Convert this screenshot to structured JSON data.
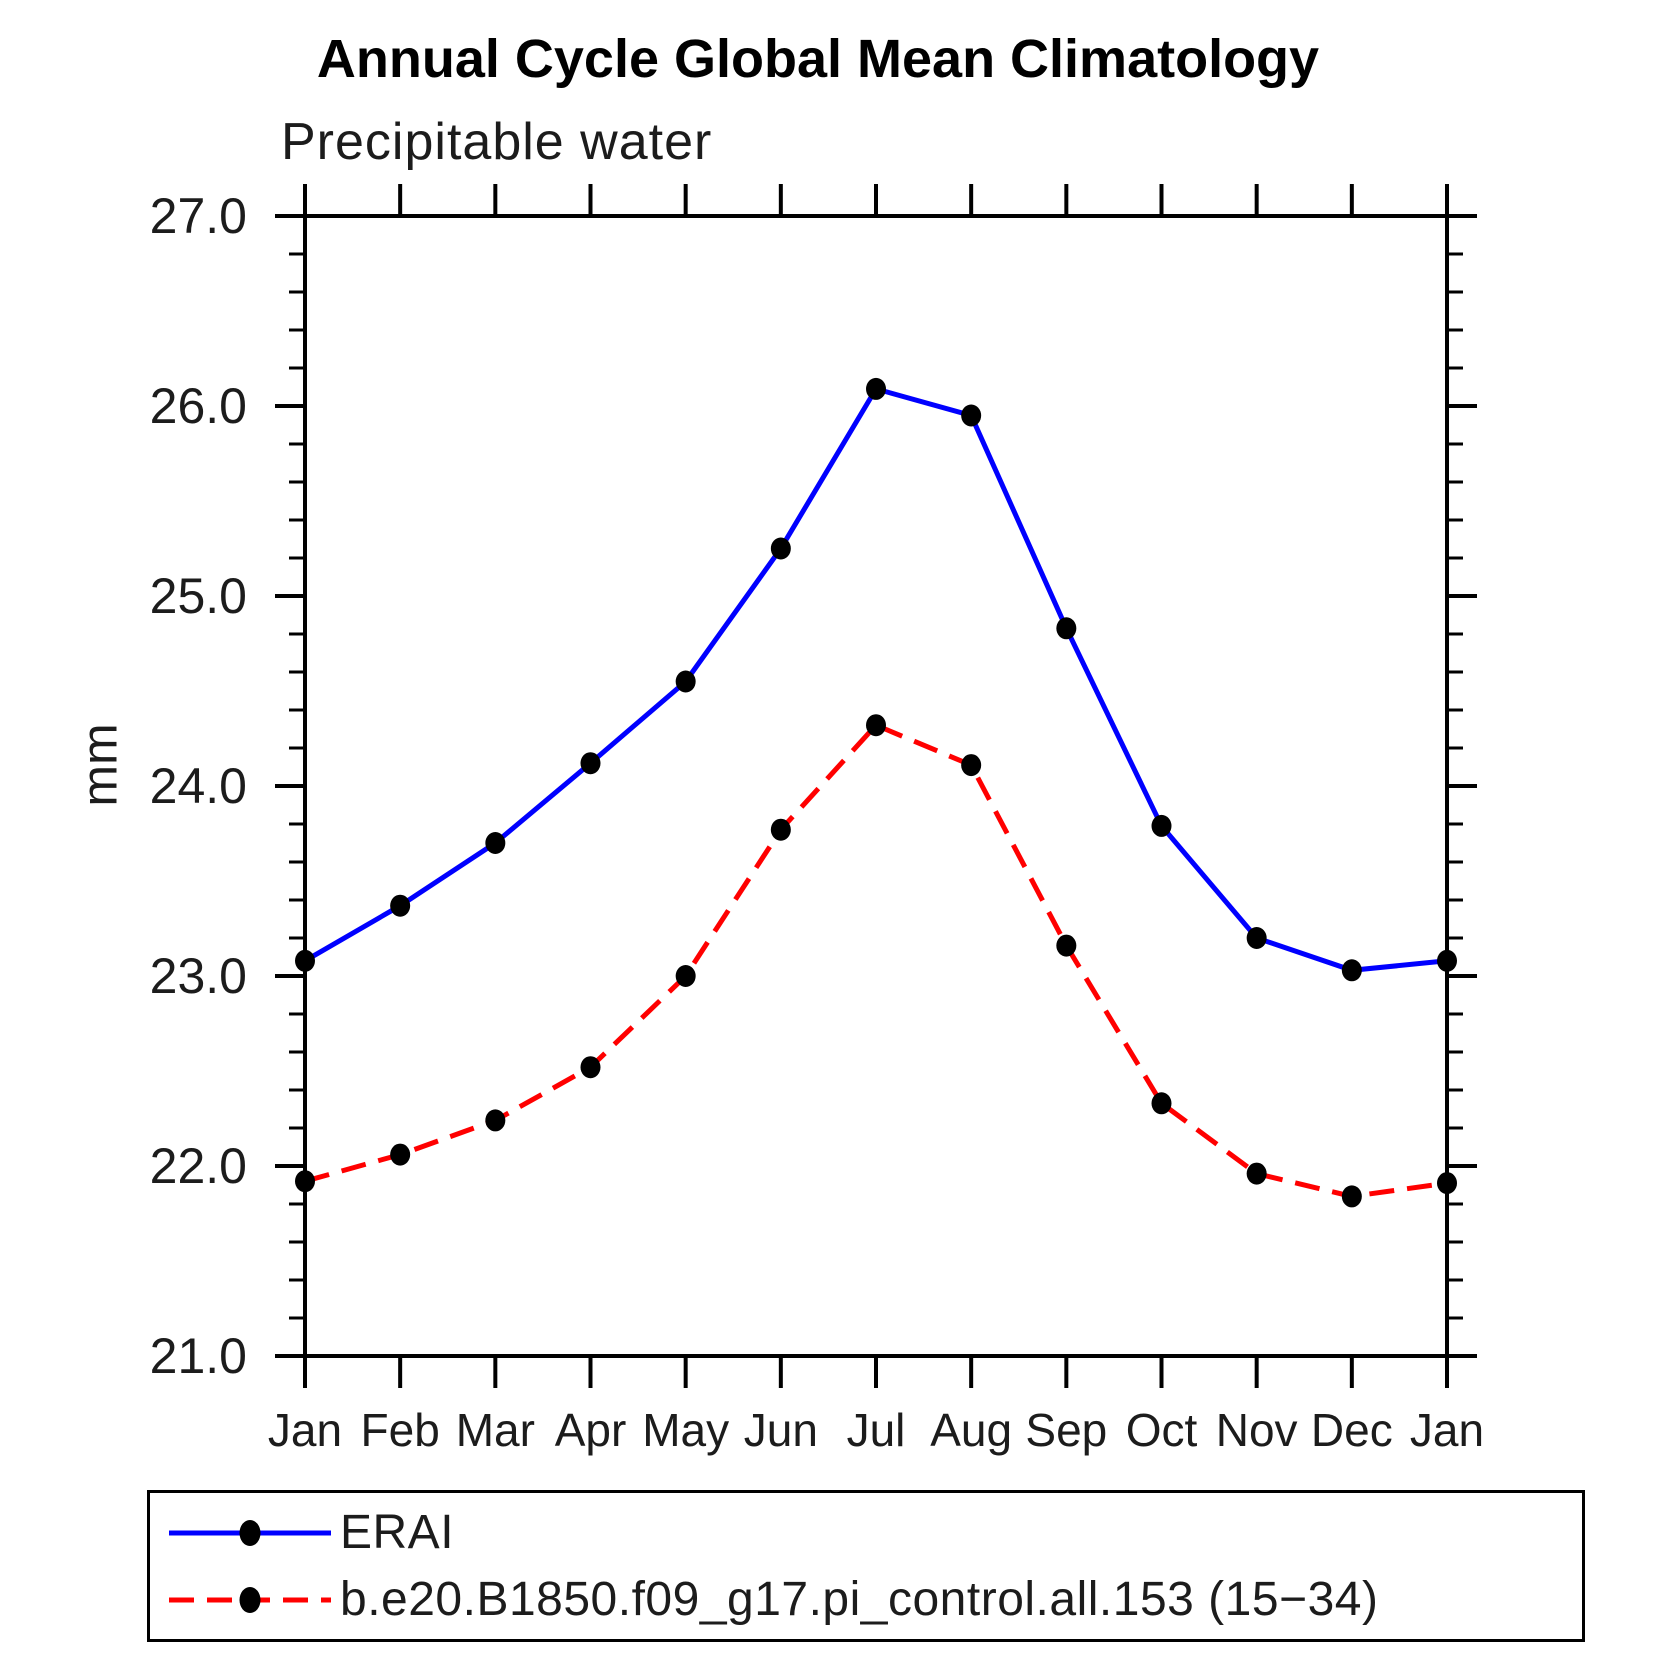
{
  "title": "Annual Cycle Global Mean Climatology",
  "chart_data": {
    "type": "line",
    "title": "Annual Cycle Global Mean Climatology",
    "subtitle": "Precipitable water",
    "ylabel": "mm",
    "xlabel": "",
    "x_labels": [
      "Jan",
      "Feb",
      "Mar",
      "Apr",
      "May",
      "Jun",
      "Jul",
      "Aug",
      "Sep",
      "Oct",
      "Nov",
      "Dec",
      "Jan"
    ],
    "ylim": [
      21.0,
      27.0
    ],
    "ytick_major": [
      21.0,
      22.0,
      23.0,
      24.0,
      25.0,
      26.0,
      27.0
    ],
    "ytick_labels": [
      "21.0",
      "22.0",
      "23.0",
      "24.0",
      "25.0",
      "26.0",
      "27.0"
    ],
    "ytick_minor_step": 0.2,
    "grid": false,
    "legend_position": "bottom",
    "axis_color": "#000000",
    "series": [
      {
        "name": "ERAI",
        "color": "#0000ff",
        "style": "solid",
        "marker": "filled-circle",
        "marker_color": "#000000",
        "values": [
          23.08,
          23.37,
          23.7,
          24.12,
          24.55,
          25.25,
          26.09,
          25.95,
          24.83,
          23.79,
          23.2,
          23.03,
          23.08
        ]
      },
      {
        "name": "b.e20.B1850.f09_g17.pi_control.all.153 (15−34)",
        "color": "#ff0000",
        "style": "dashed",
        "marker": "filled-circle",
        "marker_color": "#000000",
        "values": [
          21.92,
          22.06,
          22.24,
          22.52,
          23.0,
          23.77,
          24.32,
          24.11,
          23.16,
          22.33,
          21.96,
          21.84,
          21.91
        ]
      }
    ]
  }
}
